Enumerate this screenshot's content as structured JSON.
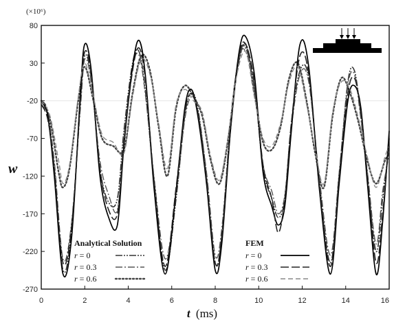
{
  "chart_data": {
    "type": "line",
    "title": "",
    "xlabel_var": "t",
    "xlabel_unit": "(ms)",
    "ylabel": "w",
    "y_multiplier": "(×10⁶)",
    "xlim": [
      0,
      16
    ],
    "ylim": [
      -270,
      80
    ],
    "x_ticks": [
      0,
      2,
      4,
      6,
      8,
      10,
      12,
      14,
      16
    ],
    "x_tick_labels": [
      "0",
      "2",
      "4",
      "6",
      "8",
      "10",
      "12",
      "14",
      "16"
    ],
    "y_ticks": [
      80,
      30,
      -20,
      -70,
      -120,
      -170,
      -220,
      -270
    ],
    "y_tick_labels": [
      "80",
      "30",
      "-20",
      "-70",
      "-120",
      "-170",
      "-220",
      "-270"
    ],
    "legends": [
      {
        "title": "Analytical Solution",
        "position": "bottom-left",
        "entries": [
          {
            "var": "r",
            "text": " = 0"
          },
          {
            "var": "r",
            "text": " = 0.3"
          },
          {
            "var": "r",
            "text": " = 0.6"
          }
        ]
      },
      {
        "title": "FEM",
        "position": "bottom-center",
        "entries": [
          {
            "var": "r",
            "text": " = 0"
          },
          {
            "var": "r",
            "text": " = 0.3"
          },
          {
            "var": "r",
            "text": " = 0.6"
          }
        ]
      }
    ],
    "series": [
      {
        "group": "analytical",
        "r": "0",
        "color": "#333333",
        "width": 1.6,
        "dash": "10 2 2 2 2 2",
        "x": [
          0,
          0.3,
          0.6,
          1.0,
          1.4,
          1.8,
          2.0,
          2.3,
          2.7,
          3.1,
          3.5,
          3.8,
          4.2,
          4.5,
          4.8,
          5.2,
          5.7,
          6.2,
          6.6,
          6.9,
          7.2,
          7.6,
          8.0,
          8.3,
          8.7,
          9.1,
          9.4,
          9.8,
          10.2,
          10.6,
          10.9,
          11.2,
          11.5,
          11.9,
          12.3,
          12.8,
          13.3,
          13.7,
          14.1,
          14.4,
          14.7,
          15.0,
          15.4,
          15.7,
          16.0
        ],
        "y": [
          -20,
          -35,
          -110,
          -245,
          -190,
          -20,
          40,
          10,
          -110,
          -155,
          -150,
          -60,
          30,
          45,
          -10,
          -130,
          -245,
          -150,
          -40,
          -10,
          -30,
          -120,
          -235,
          -200,
          -50,
          40,
          50,
          0,
          -110,
          -150,
          -175,
          -150,
          -50,
          20,
          10,
          -130,
          -235,
          -120,
          5,
          20,
          -40,
          -120,
          -220,
          -150,
          -80
        ]
      },
      {
        "group": "analytical",
        "r": "0.3",
        "color": "#555555",
        "width": 1.4,
        "dash": "10 3 2 3",
        "x": [
          0,
          0.3,
          0.6,
          1.0,
          1.4,
          1.8,
          2.0,
          2.3,
          2.7,
          3.1,
          3.5,
          3.8,
          4.2,
          4.5,
          4.8,
          5.2,
          5.7,
          6.2,
          6.6,
          6.9,
          7.2,
          7.6,
          8.0,
          8.3,
          8.7,
          9.1,
          9.4,
          9.8,
          10.2,
          10.6,
          10.9,
          11.2,
          11.5,
          11.9,
          12.3,
          12.8,
          13.3,
          13.7,
          14.1,
          14.4,
          14.7,
          15.0,
          15.4,
          15.7,
          16.0
        ],
        "y": [
          -25,
          -40,
          -100,
          -230,
          -180,
          -30,
          35,
          5,
          -100,
          -145,
          -165,
          -70,
          25,
          40,
          -15,
          -125,
          -230,
          -145,
          -45,
          -15,
          -35,
          -115,
          -225,
          -190,
          -55,
          35,
          45,
          -5,
          -105,
          -140,
          -170,
          -145,
          -55,
          15,
          5,
          -125,
          -225,
          -115,
          0,
          15,
          -45,
          -115,
          -210,
          -140,
          -90
        ]
      },
      {
        "group": "analytical",
        "r": "0.6",
        "color": "#444444",
        "width": 2.4,
        "dash": "2 3",
        "x": [
          0,
          0.4,
          0.8,
          1.0,
          1.3,
          1.7,
          2.0,
          2.4,
          2.8,
          3.3,
          3.8,
          4.2,
          4.6,
          5.0,
          5.4,
          5.8,
          6.2,
          6.6,
          7.0,
          7.4,
          7.8,
          8.2,
          8.6,
          9.0,
          9.4,
          9.8,
          10.2,
          10.6,
          11.0,
          11.4,
          11.8,
          12.2,
          12.6,
          13.0,
          13.4,
          13.8,
          14.2,
          14.6,
          15.0,
          15.4,
          15.8,
          16.0
        ],
        "y": [
          -20,
          -45,
          -115,
          -135,
          -110,
          -20,
          25,
          -20,
          -70,
          -80,
          -85,
          -10,
          40,
          20,
          -55,
          -120,
          -30,
          0,
          -15,
          -40,
          -100,
          -130,
          -70,
          20,
          55,
          -10,
          -75,
          -85,
          -55,
          10,
          30,
          -20,
          -90,
          -135,
          -40,
          10,
          -10,
          -50,
          -100,
          -130,
          -100,
          -90
        ]
      },
      {
        "group": "fem",
        "r": "0",
        "color": "#000000",
        "width": 1.7,
        "dash": "",
        "x": [
          0,
          0.3,
          0.6,
          1.0,
          1.4,
          1.8,
          2.0,
          2.3,
          2.7,
          3.1,
          3.5,
          3.8,
          4.2,
          4.5,
          4.8,
          5.2,
          5.7,
          6.2,
          6.6,
          6.9,
          7.2,
          7.6,
          8.0,
          8.3,
          8.7,
          9.1,
          9.4,
          9.8,
          10.2,
          10.6,
          10.9,
          11.2,
          11.5,
          11.9,
          12.3,
          12.8,
          13.3,
          13.7,
          14.1,
          14.4,
          14.7,
          15.0,
          15.4,
          15.7,
          16.0
        ],
        "y": [
          -20,
          -40,
          -120,
          -250,
          -200,
          -10,
          55,
          20,
          -120,
          -175,
          -185,
          -80,
          25,
          60,
          10,
          -140,
          -250,
          -140,
          -30,
          -5,
          -40,
          -130,
          -245,
          -210,
          -60,
          45,
          65,
          15,
          -115,
          -160,
          -185,
          -160,
          -60,
          55,
          25,
          -140,
          -250,
          -130,
          -20,
          0,
          -30,
          -130,
          -250,
          -180,
          -60
        ]
      },
      {
        "group": "fem",
        "r": "0.3",
        "color": "#222222",
        "width": 1.6,
        "dash": "12 4",
        "x": [
          0,
          0.3,
          0.6,
          1.0,
          1.4,
          1.8,
          2.0,
          2.3,
          2.7,
          3.1,
          3.5,
          3.8,
          4.2,
          4.5,
          4.8,
          5.2,
          5.7,
          6.2,
          6.6,
          6.9,
          7.2,
          7.6,
          8.0,
          8.3,
          8.7,
          9.1,
          9.4,
          9.8,
          10.2,
          10.6,
          10.9,
          11.2,
          11.5,
          11.9,
          12.3,
          12.8,
          13.3,
          13.7,
          14.1,
          14.4,
          14.7,
          15.0,
          15.4,
          15.7,
          16.0
        ],
        "y": [
          -25,
          -45,
          -110,
          -235,
          -185,
          -20,
          45,
          15,
          -110,
          -165,
          -170,
          -75,
          20,
          50,
          5,
          -130,
          -240,
          -135,
          -35,
          -10,
          -35,
          -125,
          -235,
          -200,
          -60,
          40,
          55,
          5,
          -105,
          -150,
          -195,
          -150,
          -50,
          40,
          15,
          -135,
          -240,
          -120,
          -10,
          10,
          -35,
          -120,
          -235,
          -170,
          -70
        ]
      },
      {
        "group": "fem",
        "r": "0.6",
        "color": "#888888",
        "width": 1.4,
        "dash": "7 4",
        "x": [
          0,
          0.4,
          0.8,
          1.0,
          1.3,
          1.7,
          2.0,
          2.4,
          2.8,
          3.3,
          3.8,
          4.2,
          4.6,
          5.0,
          5.4,
          5.8,
          6.2,
          6.6,
          7.0,
          7.4,
          7.8,
          8.2,
          8.6,
          9.0,
          9.4,
          9.8,
          10.2,
          10.6,
          11.0,
          11.4,
          11.8,
          12.2,
          12.6,
          13.0,
          13.4,
          13.8,
          14.2,
          14.6,
          15.0,
          15.4,
          15.8,
          16.0
        ],
        "y": [
          -20,
          -40,
          -100,
          -130,
          -105,
          -15,
          30,
          -15,
          -65,
          -75,
          -90,
          -15,
          35,
          15,
          -50,
          -110,
          -25,
          -5,
          -20,
          -35,
          -95,
          -125,
          -65,
          15,
          45,
          -15,
          -70,
          -80,
          -50,
          5,
          25,
          -25,
          -85,
          -130,
          -35,
          5,
          -5,
          -45,
          -95,
          -135,
          -95,
          -80
        ]
      }
    ],
    "inset": {
      "arrows": 3,
      "description": "stepped-load"
    }
  }
}
